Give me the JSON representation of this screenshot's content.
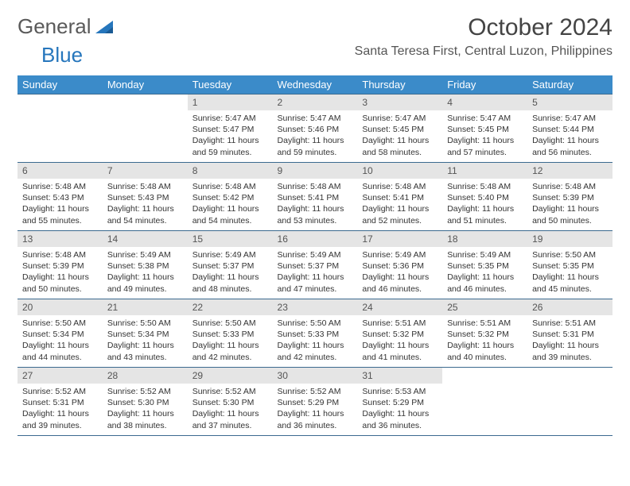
{
  "logo": {
    "part1": "General",
    "part2": "Blue"
  },
  "title": {
    "month": "October 2024",
    "location": "Santa Teresa First, Central Luzon, Philippines"
  },
  "colors": {
    "header_bg": "#3b8bc9",
    "header_text": "#ffffff",
    "daynum_bg": "#e5e5e5",
    "border": "#3b6a8f",
    "logo_gray": "#5a5a5a",
    "logo_blue": "#2676bc"
  },
  "dayLabels": [
    "Sunday",
    "Monday",
    "Tuesday",
    "Wednesday",
    "Thursday",
    "Friday",
    "Saturday"
  ],
  "weeks": [
    [
      null,
      null,
      {
        "num": "1",
        "sunrise": "5:47 AM",
        "sunset": "5:47 PM",
        "daylight": "11 hours and 59 minutes."
      },
      {
        "num": "2",
        "sunrise": "5:47 AM",
        "sunset": "5:46 PM",
        "daylight": "11 hours and 59 minutes."
      },
      {
        "num": "3",
        "sunrise": "5:47 AM",
        "sunset": "5:45 PM",
        "daylight": "11 hours and 58 minutes."
      },
      {
        "num": "4",
        "sunrise": "5:47 AM",
        "sunset": "5:45 PM",
        "daylight": "11 hours and 57 minutes."
      },
      {
        "num": "5",
        "sunrise": "5:47 AM",
        "sunset": "5:44 PM",
        "daylight": "11 hours and 56 minutes."
      }
    ],
    [
      {
        "num": "6",
        "sunrise": "5:48 AM",
        "sunset": "5:43 PM",
        "daylight": "11 hours and 55 minutes."
      },
      {
        "num": "7",
        "sunrise": "5:48 AM",
        "sunset": "5:43 PM",
        "daylight": "11 hours and 54 minutes."
      },
      {
        "num": "8",
        "sunrise": "5:48 AM",
        "sunset": "5:42 PM",
        "daylight": "11 hours and 54 minutes."
      },
      {
        "num": "9",
        "sunrise": "5:48 AM",
        "sunset": "5:41 PM",
        "daylight": "11 hours and 53 minutes."
      },
      {
        "num": "10",
        "sunrise": "5:48 AM",
        "sunset": "5:41 PM",
        "daylight": "11 hours and 52 minutes."
      },
      {
        "num": "11",
        "sunrise": "5:48 AM",
        "sunset": "5:40 PM",
        "daylight": "11 hours and 51 minutes."
      },
      {
        "num": "12",
        "sunrise": "5:48 AM",
        "sunset": "5:39 PM",
        "daylight": "11 hours and 50 minutes."
      }
    ],
    [
      {
        "num": "13",
        "sunrise": "5:48 AM",
        "sunset": "5:39 PM",
        "daylight": "11 hours and 50 minutes."
      },
      {
        "num": "14",
        "sunrise": "5:49 AM",
        "sunset": "5:38 PM",
        "daylight": "11 hours and 49 minutes."
      },
      {
        "num": "15",
        "sunrise": "5:49 AM",
        "sunset": "5:37 PM",
        "daylight": "11 hours and 48 minutes."
      },
      {
        "num": "16",
        "sunrise": "5:49 AM",
        "sunset": "5:37 PM",
        "daylight": "11 hours and 47 minutes."
      },
      {
        "num": "17",
        "sunrise": "5:49 AM",
        "sunset": "5:36 PM",
        "daylight": "11 hours and 46 minutes."
      },
      {
        "num": "18",
        "sunrise": "5:49 AM",
        "sunset": "5:35 PM",
        "daylight": "11 hours and 46 minutes."
      },
      {
        "num": "19",
        "sunrise": "5:50 AM",
        "sunset": "5:35 PM",
        "daylight": "11 hours and 45 minutes."
      }
    ],
    [
      {
        "num": "20",
        "sunrise": "5:50 AM",
        "sunset": "5:34 PM",
        "daylight": "11 hours and 44 minutes."
      },
      {
        "num": "21",
        "sunrise": "5:50 AM",
        "sunset": "5:34 PM",
        "daylight": "11 hours and 43 minutes."
      },
      {
        "num": "22",
        "sunrise": "5:50 AM",
        "sunset": "5:33 PM",
        "daylight": "11 hours and 42 minutes."
      },
      {
        "num": "23",
        "sunrise": "5:50 AM",
        "sunset": "5:33 PM",
        "daylight": "11 hours and 42 minutes."
      },
      {
        "num": "24",
        "sunrise": "5:51 AM",
        "sunset": "5:32 PM",
        "daylight": "11 hours and 41 minutes."
      },
      {
        "num": "25",
        "sunrise": "5:51 AM",
        "sunset": "5:32 PM",
        "daylight": "11 hours and 40 minutes."
      },
      {
        "num": "26",
        "sunrise": "5:51 AM",
        "sunset": "5:31 PM",
        "daylight": "11 hours and 39 minutes."
      }
    ],
    [
      {
        "num": "27",
        "sunrise": "5:52 AM",
        "sunset": "5:31 PM",
        "daylight": "11 hours and 39 minutes."
      },
      {
        "num": "28",
        "sunrise": "5:52 AM",
        "sunset": "5:30 PM",
        "daylight": "11 hours and 38 minutes."
      },
      {
        "num": "29",
        "sunrise": "5:52 AM",
        "sunset": "5:30 PM",
        "daylight": "11 hours and 37 minutes."
      },
      {
        "num": "30",
        "sunrise": "5:52 AM",
        "sunset": "5:29 PM",
        "daylight": "11 hours and 36 minutes."
      },
      {
        "num": "31",
        "sunrise": "5:53 AM",
        "sunset": "5:29 PM",
        "daylight": "11 hours and 36 minutes."
      },
      null,
      null
    ]
  ]
}
